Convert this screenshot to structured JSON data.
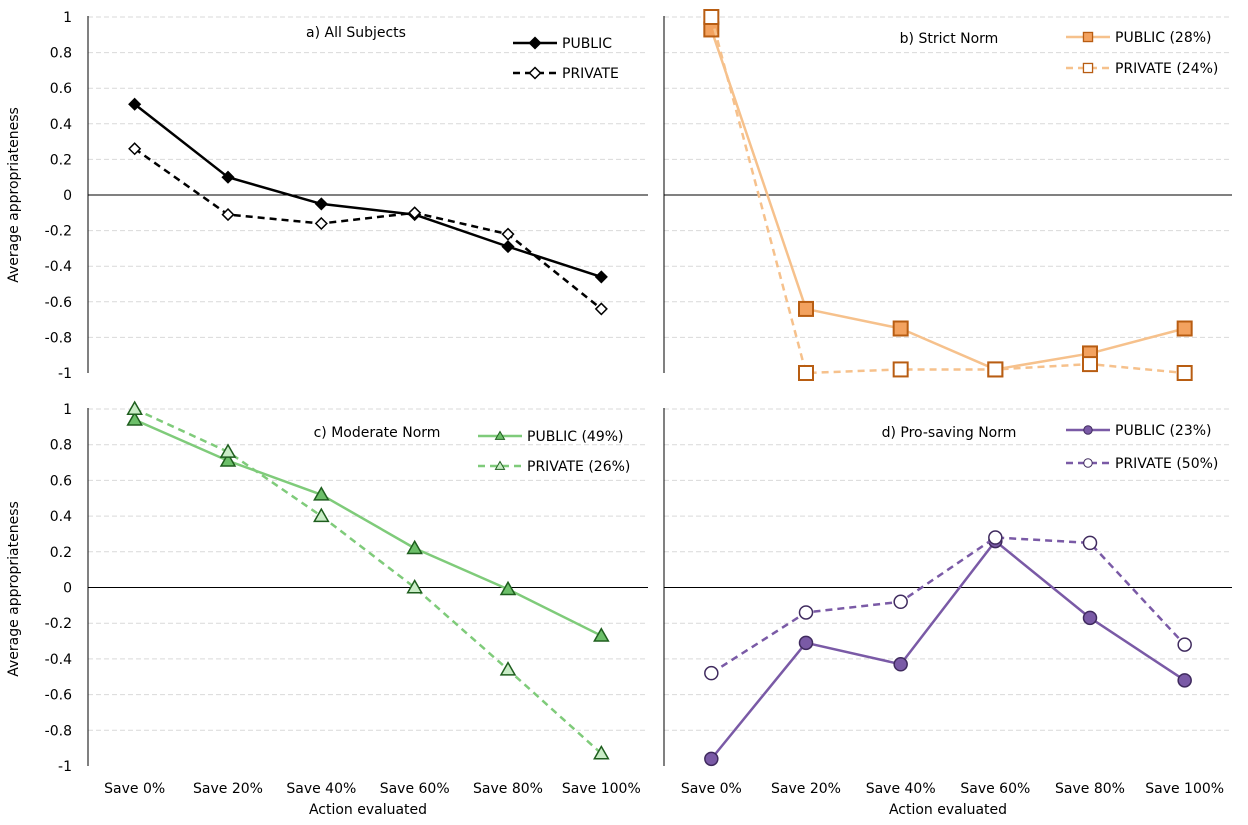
{
  "shared": {
    "categories": [
      "Save 0%",
      "Save 20%",
      "Save 40%",
      "Save 60%",
      "Save 80%",
      "Save 100%"
    ],
    "xlabel": "Action evaluated",
    "ylabel": "Average appropriateness",
    "yticks": [
      "1",
      "0.8",
      "0.6",
      "0.4",
      "0.2",
      "0",
      "-0.2",
      "-0.4",
      "-0.6",
      "-0.8",
      "-1"
    ]
  },
  "chart_data": [
    {
      "type": "line",
      "title": "a) All Subjects",
      "categories": [
        "Save 0%",
        "Save 20%",
        "Save 40%",
        "Save 60%",
        "Save 80%",
        "Save 100%"
      ],
      "ylim": [
        -1,
        1
      ],
      "ylabel": "Average appropriateness",
      "xlabel": "",
      "grid": true,
      "legend": "top-right",
      "series": [
        {
          "name": "PUBLIC",
          "values": [
            0.51,
            0.1,
            -0.05,
            -0.11,
            -0.29,
            -0.46
          ],
          "color": "#000000",
          "dash": false,
          "marker": "diamond"
        },
        {
          "name": "PRIVATE",
          "values": [
            0.26,
            -0.11,
            -0.16,
            -0.1,
            -0.22,
            -0.64
          ],
          "color": "#000000",
          "dash": true,
          "marker": "diamond-open"
        }
      ]
    },
    {
      "type": "line",
      "title": "b) Strict Norm",
      "categories": [
        "Save 0%",
        "Save 20%",
        "Save 40%",
        "Save 60%",
        "Save 80%",
        "Save 100%"
      ],
      "ylim": [
        -1,
        1
      ],
      "ylabel": "",
      "xlabel": "",
      "grid": true,
      "legend": "top-right",
      "series": [
        {
          "name": "PUBLIC (28%)",
          "values": [
            0.93,
            -0.64,
            -0.75,
            -0.98,
            -0.89,
            -0.75
          ],
          "color": "#f6c18c",
          "dash": false,
          "marker": "square",
          "fill": "#f3a25f",
          "stroke": "#b85d12"
        },
        {
          "name": "PRIVATE (24%)",
          "values": [
            1.0,
            -1.0,
            -0.98,
            -0.98,
            -0.95,
            -1.0
          ],
          "color": "#f6c18c",
          "dash": true,
          "marker": "square-open",
          "fill": "#ffffff",
          "stroke": "#b85d12"
        }
      ]
    },
    {
      "type": "line",
      "title": "c) Moderate Norm",
      "categories": [
        "Save 0%",
        "Save 20%",
        "Save 40%",
        "Save 60%",
        "Save 80%",
        "Save 100%"
      ],
      "ylim": [
        -1,
        1
      ],
      "ylabel": "Average appropriateness",
      "xlabel": "Action evaluated",
      "grid": true,
      "legend": "top-right",
      "series": [
        {
          "name": "PUBLIC (49%)",
          "values": [
            0.94,
            0.71,
            0.52,
            0.22,
            -0.01,
            -0.27
          ],
          "color": "#7fcb7a",
          "dash": false,
          "marker": "triangle",
          "fill": "#6cbf69",
          "stroke": "#1e5e1e"
        },
        {
          "name": "PRIVATE (26%)",
          "values": [
            1.0,
            0.76,
            0.4,
            0.0,
            -0.46,
            -0.93
          ],
          "color": "#7fcb7a",
          "dash": true,
          "marker": "triangle-open",
          "fill": "#c9ecc6",
          "stroke": "#1e5e1e"
        }
      ]
    },
    {
      "type": "line",
      "title": "d) Pro-saving Norm",
      "categories": [
        "Save 0%",
        "Save 20%",
        "Save 40%",
        "Save 60%",
        "Save 80%",
        "Save 100%"
      ],
      "ylim": [
        -1,
        1
      ],
      "ylabel": "",
      "xlabel": "Action evaluated",
      "grid": true,
      "legend": "top-right",
      "series": [
        {
          "name": "PUBLIC (23%)",
          "values": [
            -0.96,
            -0.31,
            -0.43,
            0.26,
            -0.17,
            -0.52
          ],
          "color": "#7a5aa6",
          "dash": false,
          "marker": "circle",
          "fill": "#7a5aa6",
          "stroke": "#3f2a5e"
        },
        {
          "name": "PRIVATE (50%)",
          "values": [
            -0.48,
            -0.14,
            -0.08,
            0.28,
            0.25,
            -0.32
          ],
          "color": "#7a5aa6",
          "dash": true,
          "marker": "circle-open",
          "fill": "#ffffff",
          "stroke": "#3f2a5e"
        }
      ]
    }
  ]
}
